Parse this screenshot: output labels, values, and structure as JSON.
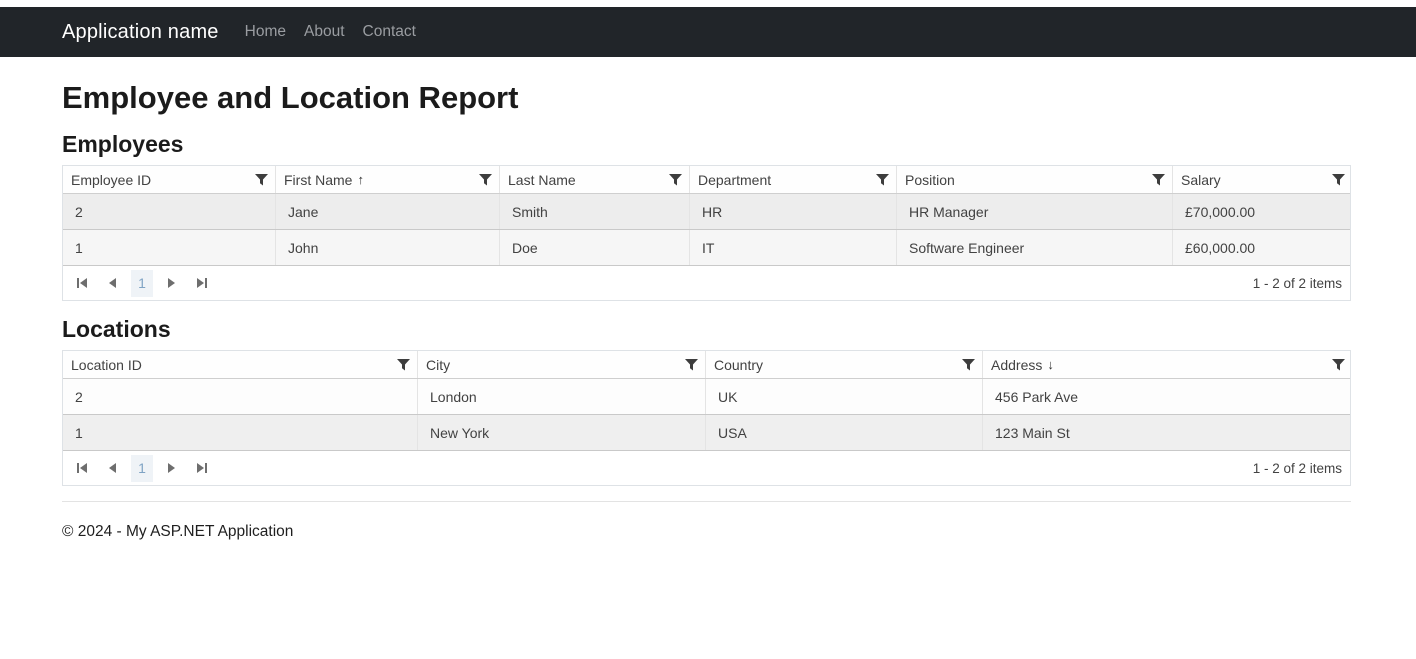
{
  "navbar": {
    "brand": "Application name",
    "links": [
      {
        "label": "Home"
      },
      {
        "label": "About"
      },
      {
        "label": "Contact"
      }
    ]
  },
  "page": {
    "title": "Employee and Location Report"
  },
  "grids": [
    {
      "title": "Employees",
      "columns": [
        {
          "label": "Employee ID",
          "sort": ""
        },
        {
          "label": "First Name",
          "sort": "asc"
        },
        {
          "label": "Last Name",
          "sort": ""
        },
        {
          "label": "Department",
          "sort": ""
        },
        {
          "label": "Position",
          "sort": ""
        },
        {
          "label": "Salary",
          "sort": ""
        }
      ],
      "rows": [
        [
          "2",
          "Jane",
          "Smith",
          "HR",
          "HR Manager",
          "£70,000.00"
        ],
        [
          "1",
          "John",
          "Doe",
          "IT",
          "Software Engineer",
          "£60,000.00"
        ]
      ],
      "pager": {
        "current_page": "1",
        "info": "1 - 2 of 2 items"
      }
    },
    {
      "title": "Locations",
      "columns": [
        {
          "label": "Location ID",
          "sort": ""
        },
        {
          "label": "City",
          "sort": ""
        },
        {
          "label": "Country",
          "sort": ""
        },
        {
          "label": "Address",
          "sort": "desc"
        }
      ],
      "rows": [
        [
          "2",
          "London",
          "UK",
          "456 Park Ave"
        ],
        [
          "1",
          "New York",
          "USA",
          "123 Main St"
        ]
      ],
      "pager": {
        "current_page": "1",
        "info": "1 - 2 of 2 items"
      }
    }
  ],
  "footer": {
    "text": "© 2024 - My ASP.NET Application"
  },
  "icons": {
    "filter": "filter-funnel-icon",
    "sort_asc": "↑",
    "sort_desc": "↓",
    "pager": [
      "first-page-icon",
      "previous-page-icon",
      "next-page-icon",
      "last-page-icon"
    ]
  },
  "colors": {
    "navbar_bg": "#212529",
    "navbar_link": "#9a9da1",
    "selected_page_bg": "#eff3f7",
    "selected_page_text": "#7fa3c4",
    "alt_row_bg": "#ededed",
    "grid_border": "#dee2e6"
  }
}
